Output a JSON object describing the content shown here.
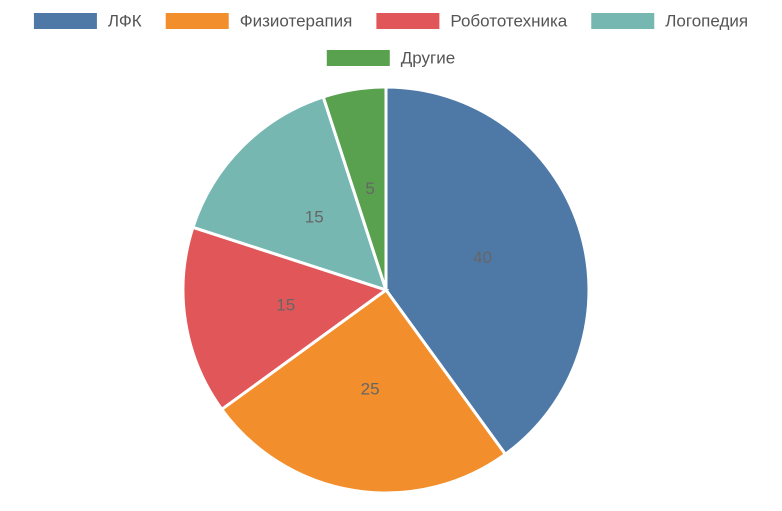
{
  "chart_data": {
    "type": "pie",
    "categories": [
      "ЛФК",
      "Физиотерапия",
      "Робототехника",
      "Логопедия",
      "Другие"
    ],
    "values": [
      40,
      25,
      15,
      15,
      5
    ],
    "colors": [
      "#4e79a7",
      "#f28e2b",
      "#e15759",
      "#76b7b2",
      "#59a14f"
    ],
    "legend": "top"
  }
}
